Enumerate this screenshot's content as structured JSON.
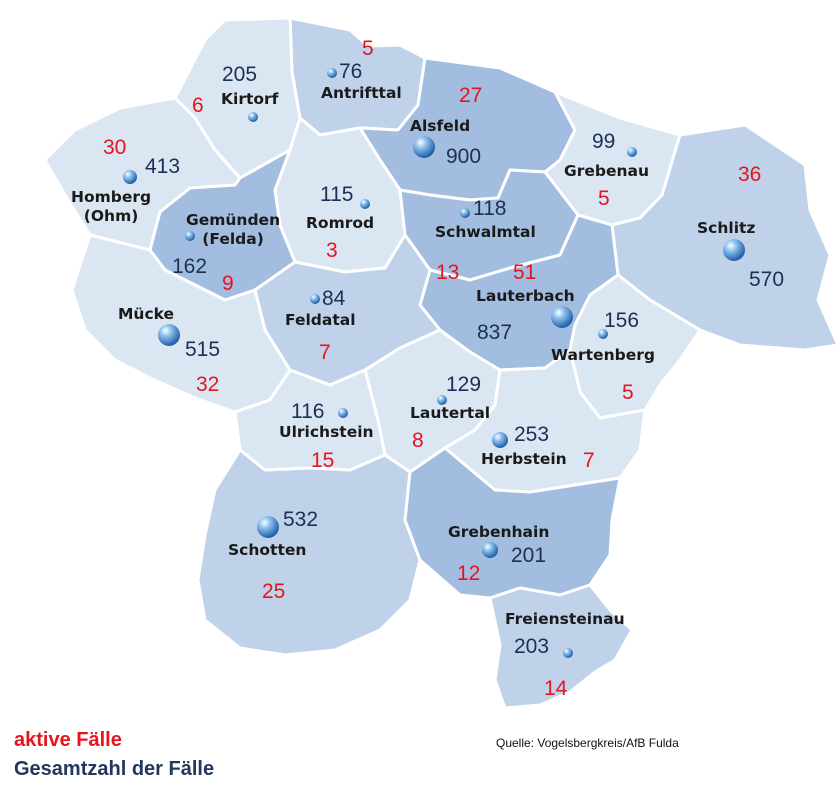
{
  "legend": {
    "active_label": "aktive Fälle",
    "total_label": "Gesamtzahl der Fälle",
    "active_color": "#e8141c",
    "total_color": "#24375f"
  },
  "source": "Quelle: Vogelsbergkreis/AfB Fulda",
  "colors": {
    "region_light": "#dbe6f3",
    "region_mid": "#bfd2ea",
    "region_dark": "#a2bde0",
    "border": "#ffffff"
  },
  "municipalities": [
    {
      "id": "antrifttal",
      "name": "Antrifttal",
      "total": "76",
      "active": "5"
    },
    {
      "id": "kirtorf",
      "name": "Kirtorf",
      "total": "205",
      "active": "6"
    },
    {
      "id": "alsfeld",
      "name": "Alsfeld",
      "total": "900",
      "active": "27"
    },
    {
      "id": "grebenau",
      "name": "Grebenau",
      "total": "99",
      "active": "5"
    },
    {
      "id": "homberg",
      "name": "Homberg\n(Ohm)",
      "total": "413",
      "active": "30"
    },
    {
      "id": "romrod",
      "name": "Romrod",
      "total": "115",
      "active": "3"
    },
    {
      "id": "schwalmtal",
      "name": "Schwalmtal",
      "total": "118",
      "active": "13"
    },
    {
      "id": "schlitz",
      "name": "Schlitz",
      "total": "570",
      "active": "36"
    },
    {
      "id": "gemuenden",
      "name": "Gemünden\n(Felda)",
      "total": "162",
      "active": "9"
    },
    {
      "id": "lauterbach",
      "name": "Lauterbach",
      "total": "837",
      "active": "51"
    },
    {
      "id": "muecke",
      "name": "Mücke",
      "total": "515",
      "active": "32"
    },
    {
      "id": "feldatal",
      "name": "Feldatal",
      "total": "84",
      "active": "7"
    },
    {
      "id": "wartenberg",
      "name": "Wartenberg",
      "total": "156",
      "active": "5"
    },
    {
      "id": "lautertal",
      "name": "Lautertal",
      "total": "129",
      "active": "8"
    },
    {
      "id": "ulrichstein",
      "name": "Ulrichstein",
      "total": "116",
      "active": "15"
    },
    {
      "id": "herbstein",
      "name": "Herbstein",
      "total": "253",
      "active": "7"
    },
    {
      "id": "schotten",
      "name": "Schotten",
      "total": "532",
      "active": "25"
    },
    {
      "id": "grebenhain",
      "name": "Grebenhain",
      "total": "201",
      "active": "12"
    },
    {
      "id": "freiensteinau",
      "name": "Freiensteinau",
      "total": "203",
      "active": "14"
    }
  ]
}
